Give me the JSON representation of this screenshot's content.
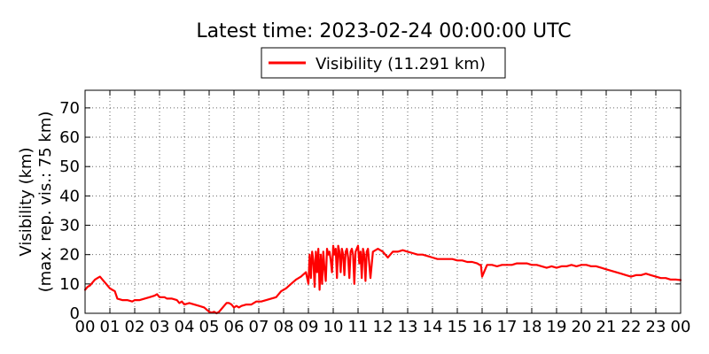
{
  "chart_data": {
    "type": "line",
    "title": "Latest time: 2023-02-24 00:00:00 UTC",
    "ylabel_line1": "Visibility (km)",
    "ylabel_line2": "(max. rep. vis.: 75 km)",
    "xlabel": "",
    "ylim": [
      0,
      76
    ],
    "yticks": [
      0,
      10,
      20,
      30,
      40,
      50,
      60,
      70
    ],
    "xlim": [
      0,
      24
    ],
    "xticks": [
      "00",
      "01",
      "02",
      "03",
      "04",
      "05",
      "06",
      "07",
      "08",
      "09",
      "10",
      "11",
      "12",
      "13",
      "14",
      "15",
      "16",
      "17",
      "18",
      "19",
      "20",
      "21",
      "22",
      "23",
      "00"
    ],
    "grid": true,
    "legend_position": "top-center",
    "series": [
      {
        "name": "Visibility (11.291 km)",
        "color": "#ff0000",
        "x": [
          0.0,
          0.1,
          0.2,
          0.3,
          0.4,
          0.5,
          0.6,
          0.7,
          0.8,
          0.9,
          1.0,
          1.1,
          1.2,
          1.3,
          1.5,
          1.7,
          1.9,
          2.0,
          2.2,
          2.4,
          2.6,
          2.8,
          2.9,
          3.0,
          3.1,
          3.2,
          3.3,
          3.5,
          3.7,
          3.8,
          3.9,
          4.0,
          4.2,
          4.4,
          4.6,
          4.8,
          5.0,
          5.1,
          5.2,
          5.3,
          5.4,
          5.5,
          5.6,
          5.7,
          5.8,
          5.9,
          6.0,
          6.1,
          6.2,
          6.3,
          6.5,
          6.7,
          6.9,
          7.1,
          7.3,
          7.5,
          7.7,
          7.9,
          8.1,
          8.3,
          8.5,
          8.7,
          8.9,
          9.0,
          9.05,
          9.1,
          9.15,
          9.2,
          9.25,
          9.3,
          9.35,
          9.4,
          9.45,
          9.5,
          9.55,
          9.6,
          9.65,
          9.7,
          9.75,
          9.8,
          9.85,
          9.9,
          9.95,
          10.0,
          10.05,
          10.1,
          10.15,
          10.2,
          10.25,
          10.3,
          10.35,
          10.4,
          10.45,
          10.5,
          10.55,
          10.6,
          10.65,
          10.7,
          10.75,
          10.8,
          10.85,
          10.9,
          10.95,
          11.0,
          11.05,
          11.1,
          11.15,
          11.2,
          11.25,
          11.3,
          11.35,
          11.4,
          11.45,
          11.5,
          11.6,
          11.8,
          12.0,
          12.2,
          12.4,
          12.6,
          12.8,
          13.0,
          13.2,
          13.4,
          13.6,
          13.8,
          14.0,
          14.2,
          14.4,
          14.6,
          14.8,
          15.0,
          15.2,
          15.4,
          15.6,
          15.8,
          15.9,
          15.95,
          16.0,
          16.2,
          16.4,
          16.6,
          16.8,
          17.0,
          17.2,
          17.4,
          17.6,
          17.8,
          18.0,
          18.2,
          18.4,
          18.6,
          18.8,
          19.0,
          19.2,
          19.4,
          19.6,
          19.8,
          20.0,
          20.2,
          20.4,
          20.6,
          20.8,
          21.0,
          21.2,
          21.4,
          21.6,
          21.8,
          22.0,
          22.2,
          22.4,
          22.6,
          22.8,
          23.0,
          23.2,
          23.4,
          23.6,
          23.8,
          24.0
        ],
        "values": [
          8,
          9,
          9.5,
          10.5,
          11.5,
          12,
          12.5,
          11.5,
          10.5,
          9.5,
          8.5,
          8,
          7.5,
          5,
          4.5,
          4.5,
          4,
          4.5,
          4.5,
          5,
          5.5,
          6,
          6.5,
          5.5,
          5.5,
          5.5,
          5,
          5,
          4.5,
          3.5,
          4,
          3,
          3.5,
          3,
          2.5,
          2,
          0.5,
          0.2,
          0.5,
          0,
          0.5,
          1.5,
          2.5,
          3.5,
          3.5,
          3,
          2,
          2.5,
          2,
          2.5,
          3,
          3,
          4,
          4,
          4.5,
          5,
          5.5,
          7.5,
          8.5,
          10,
          11.5,
          12.5,
          14,
          10,
          20,
          12,
          21,
          18,
          9,
          21,
          14,
          22,
          8,
          20,
          10,
          21,
          15,
          11,
          22,
          20,
          21,
          18,
          14,
          23,
          20,
          22,
          12,
          23,
          21,
          14,
          22,
          20,
          13,
          21,
          22,
          19,
          12,
          21,
          22,
          20,
          10,
          21,
          22,
          23,
          17,
          21,
          12,
          22,
          20,
          11,
          21,
          22,
          17,
          12,
          21,
          22,
          21,
          19,
          21,
          21,
          21.5,
          21,
          20.5,
          20,
          20,
          19.5,
          19,
          18.5,
          18.5,
          18.5,
          18.5,
          18,
          18,
          17.5,
          17.5,
          17,
          16.5,
          16.5,
          12.5,
          16.5,
          16.5,
          16,
          16.5,
          16.5,
          16.5,
          17,
          17,
          17,
          16.5,
          16.5,
          16,
          15.5,
          16,
          15.5,
          16,
          16,
          16.5,
          16,
          16.5,
          16.5,
          16,
          16,
          15.5,
          15,
          14.5,
          14,
          13.5,
          13,
          12.5,
          13,
          13,
          13.5,
          13,
          12.5,
          12,
          12,
          11.5,
          11.5,
          11.3
        ]
      }
    ]
  }
}
